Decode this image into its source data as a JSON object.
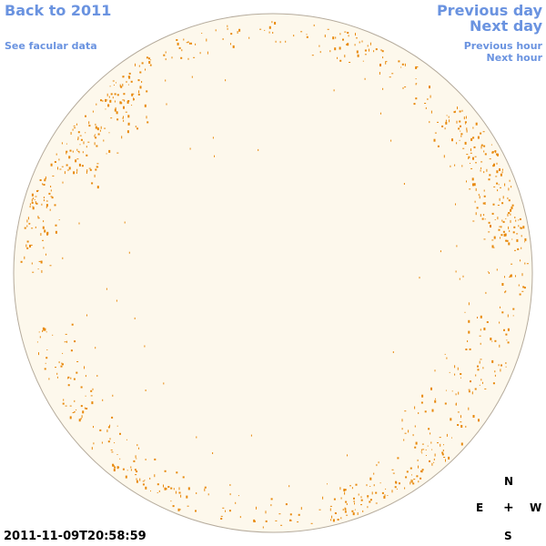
{
  "nav": {
    "back_label": "Back to 2011",
    "see_facular_label": "See facular data",
    "prev_day_label": "Previous day",
    "next_day_label": "Next day",
    "prev_hour_label": "Previous hour",
    "next_hour_label": "Next hour"
  },
  "timestamp": "2011-11-09T20:58:59",
  "compass": {
    "north": "N",
    "east": "E",
    "center": "+",
    "west": "W",
    "south": "S"
  },
  "colors": {
    "disk_fill": "#fdf8ec",
    "disk_stroke": "#b5ab9c",
    "facula": "#e8890c",
    "link": "#6a93e0"
  }
}
